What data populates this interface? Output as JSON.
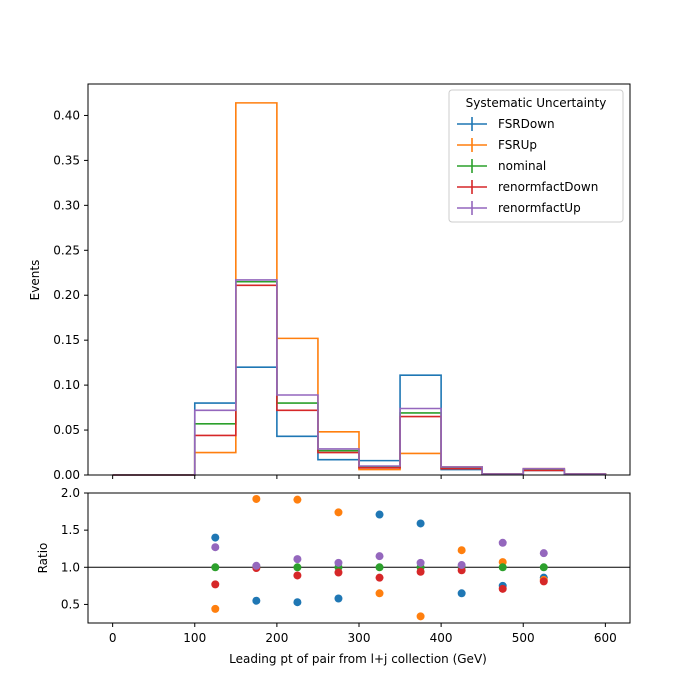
{
  "chart_data": {
    "type": "histogram-step-with-ratio",
    "xlabel": "Leading pt of pair from l+j collection (GeV)",
    "xlim": [
      -30,
      630
    ],
    "xticks": [
      0,
      100,
      200,
      300,
      400,
      500,
      600
    ],
    "bin_edges": [
      0,
      50,
      100,
      150,
      200,
      250,
      300,
      350,
      400,
      450,
      500,
      550,
      600
    ],
    "main": {
      "ylabel": "Events",
      "ylim": [
        0,
        0.435
      ],
      "yticks": [
        0.0,
        0.05,
        0.1,
        0.15,
        0.2,
        0.25,
        0.3,
        0.35,
        0.4
      ],
      "ytick_labels": [
        "0.00",
        "0.05",
        "0.10",
        "0.15",
        "0.20",
        "0.25",
        "0.30",
        "0.35",
        "0.40"
      ]
    },
    "ratio": {
      "ylabel": "Ratio",
      "ylim": [
        0.25,
        2.0
      ],
      "yticks": [
        0.5,
        1.0,
        1.5,
        2.0
      ],
      "ytick_labels": [
        "0.5",
        "1.0",
        "1.5",
        "2.0"
      ],
      "reference_line": 1.0,
      "x": [
        125,
        175,
        225,
        275,
        325,
        375,
        425,
        475,
        525
      ]
    },
    "legend": {
      "title": "Systematic Uncertainty",
      "placement": "top-right"
    },
    "series": [
      {
        "name": "FSRDown",
        "color": "#1f77b4",
        "values": [
          0,
          0,
          0.08,
          0.12,
          0.043,
          0.017,
          0.016,
          0.111,
          0.006,
          0.001,
          0.005,
          0.001
        ],
        "ratio": [
          1.4,
          0.55,
          0.53,
          0.58,
          1.71,
          1.59,
          0.65,
          0.75,
          0.86
        ]
      },
      {
        "name": "FSRUp",
        "color": "#ff7f0e",
        "values": [
          0,
          0,
          0.025,
          0.414,
          0.152,
          0.048,
          0.006,
          0.024,
          0.009,
          0.001,
          0.007,
          0.001
        ],
        "ratio": [
          0.44,
          1.92,
          1.91,
          1.74,
          0.65,
          0.34,
          1.23,
          1.07,
          0.83
        ]
      },
      {
        "name": "nominal",
        "color": "#2ca02c",
        "values": [
          0,
          0,
          0.057,
          0.215,
          0.08,
          0.027,
          0.009,
          0.069,
          0.008,
          0.001,
          0.006,
          0.001
        ],
        "ratio": [
          1.0,
          1.0,
          1.0,
          1.0,
          1.0,
          1.0,
          1.0,
          1.0,
          1.0
        ]
      },
      {
        "name": "renormfactDown",
        "color": "#d62728",
        "values": [
          0,
          0,
          0.044,
          0.211,
          0.072,
          0.025,
          0.008,
          0.065,
          0.007,
          0.001,
          0.005,
          0.001
        ],
        "ratio": [
          0.77,
          0.99,
          0.89,
          0.93,
          0.86,
          0.94,
          0.96,
          0.71,
          0.81
        ]
      },
      {
        "name": "renormfactUp",
        "color": "#9467bd",
        "values": [
          0,
          0,
          0.072,
          0.217,
          0.089,
          0.029,
          0.01,
          0.074,
          0.009,
          0.001,
          0.007,
          0.001
        ],
        "ratio": [
          1.27,
          1.02,
          1.11,
          1.06,
          1.15,
          1.06,
          1.03,
          1.33,
          1.19
        ]
      }
    ]
  }
}
